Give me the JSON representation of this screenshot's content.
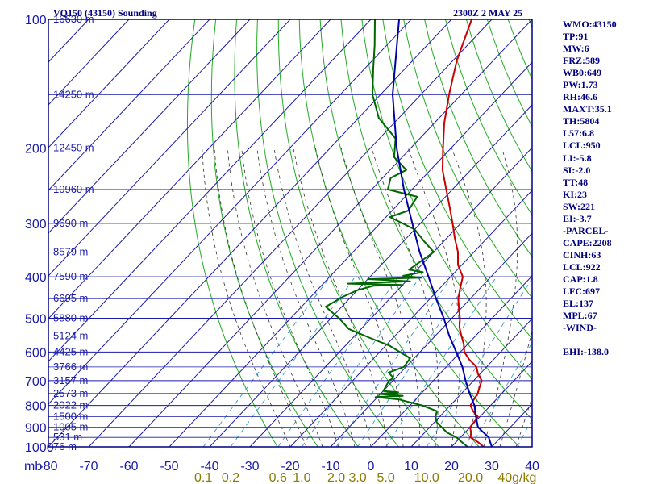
{
  "header": {
    "station_title": "VQ150 (43150) Sounding",
    "time_title": "2300Z  2 MAY 25"
  },
  "indices": [
    "WMO:43150",
    "TP:91",
    "MW:6",
    "FRZ:589",
    "WB0:649",
    "PW:1.73",
    "RH:46.6",
    "MAXT:35.1",
    "TH:5804",
    "L57:6.8",
    "LCL:950",
    "LI:-5.8",
    "SI:-2.0",
    "TT:48",
    "KI:23",
    "SW:221",
    "EI:-3.7",
    "-PARCEL-",
    "CAPE:2208",
    "CINH:63",
    "LCL:922",
    "CAP:1.8",
    "LFC:697",
    "EL:137",
    "MPL:67",
    "-WIND-",
    "",
    "EHI:-138.0"
  ],
  "colors": {
    "background": "#ffffff",
    "frame": "#000080",
    "isobar": "#1a1aa8",
    "isotherm": "#1a1aa8",
    "dry_adiabat": "#22aa22",
    "moist_adiabat": "#333333",
    "mixing_ratio": "#3399cc",
    "temperature": "#cc0000",
    "dewpoint": "#006600",
    "parcel": "#0000aa",
    "axis_text": "#1a1aa8",
    "height_text": "#1a1aa8",
    "mixing_text": "#8a7a00"
  },
  "chart_data": {
    "type": "line",
    "title": "VQ150 (43150) Sounding",
    "xlabel": "",
    "ylabel": "mb",
    "x_axis": "temperature (C)",
    "y_axis": "pressure (mb), log scale",
    "xlim": [
      -80,
      40
    ],
    "ylim": [
      1000,
      100
    ],
    "x_ticks": [
      -80,
      -70,
      -60,
      -50,
      -40,
      -30,
      -20,
      -10,
      0,
      10,
      20,
      30,
      40
    ],
    "y_ticks": [
      100,
      200,
      300,
      400,
      500,
      600,
      700,
      800,
      900,
      1000
    ],
    "y_label_unit": "mb",
    "isotherm_skew": "skewed",
    "height_labels": [
      {
        "p": 100,
        "text": "16630 m"
      },
      {
        "p": 150,
        "text": "14250 m"
      },
      {
        "p": 200,
        "text": "12450 m"
      },
      {
        "p": 250,
        "text": "10960 m"
      },
      {
        "p": 300,
        "text": "9690 m"
      },
      {
        "p": 350,
        "text": "8579 m"
      },
      {
        "p": 400,
        "text": "7590 m"
      },
      {
        "p": 450,
        "text": "6695 m"
      },
      {
        "p": 500,
        "text": "5880 m"
      },
      {
        "p": 550,
        "text": "5124 m"
      },
      {
        "p": 600,
        "text": "4425 m"
      },
      {
        "p": 650,
        "text": "3766 m"
      },
      {
        "p": 700,
        "text": "3157 m"
      },
      {
        "p": 750,
        "text": "2573 m"
      },
      {
        "p": 800,
        "text": "2022 m"
      },
      {
        "p": 850,
        "text": "1500 m"
      },
      {
        "p": 900,
        "text": "1005 m"
      },
      {
        "p": 950,
        "text": "531 m"
      },
      {
        "p": 1000,
        "text": "76 m"
      }
    ],
    "mixing_ratio_labels": [
      "0.1",
      "0.2",
      "0.6",
      "1.0",
      "2.0",
      "3.0",
      "5.0",
      "10.0",
      "20.0",
      "40g/kg"
    ],
    "series": [
      {
        "name": "temperature",
        "points": [
          [
            1000,
            28
          ],
          [
            975,
            25.5
          ],
          [
            950,
            22.5
          ],
          [
            925,
            21.5
          ],
          [
            900,
            20
          ],
          [
            875,
            19.8
          ],
          [
            850,
            19.5
          ],
          [
            825,
            17
          ],
          [
            800,
            15
          ],
          [
            775,
            14.5
          ],
          [
            750,
            14
          ],
          [
            725,
            13
          ],
          [
            700,
            12
          ],
          [
            675,
            9.5
          ],
          [
            650,
            7.5
          ],
          [
            625,
            4
          ],
          [
            600,
            1
          ],
          [
            575,
            -1
          ],
          [
            550,
            -3.5
          ],
          [
            525,
            -6
          ],
          [
            500,
            -8
          ],
          [
            475,
            -10.5
          ],
          [
            450,
            -13
          ],
          [
            425,
            -15
          ],
          [
            400,
            -17
          ],
          [
            375,
            -21
          ],
          [
            350,
            -24
          ],
          [
            325,
            -28
          ],
          [
            300,
            -32
          ],
          [
            275,
            -36.5
          ],
          [
            250,
            -41.5
          ],
          [
            225,
            -47
          ],
          [
            200,
            -52
          ],
          [
            175,
            -57.5
          ],
          [
            150,
            -63
          ],
          [
            125,
            -69
          ],
          [
            100,
            -75
          ]
        ]
      },
      {
        "name": "dewpoint",
        "points": [
          [
            1000,
            24
          ],
          [
            975,
            21.5
          ],
          [
            950,
            19
          ],
          [
            925,
            15.5
          ],
          [
            900,
            13
          ],
          [
            875,
            10.5
          ],
          [
            850,
            9
          ],
          [
            825,
            8
          ],
          [
            800,
            3
          ],
          [
            775,
            -4
          ],
          [
            765,
            -10.5
          ],
          [
            760,
            -4
          ],
          [
            752,
            -10.5
          ],
          [
            745,
            -6
          ],
          [
            740,
            -10
          ],
          [
            700,
            -11
          ],
          [
            690,
            -10.5
          ],
          [
            670,
            -13
          ],
          [
            650,
            -10.5
          ],
          [
            620,
            -11
          ],
          [
            600,
            -15
          ],
          [
            580,
            -19
          ],
          [
            555,
            -26
          ],
          [
            530,
            -33
          ],
          [
            500,
            -38
          ],
          [
            470,
            -44
          ],
          [
            445,
            -42
          ],
          [
            430,
            -40
          ],
          [
            420,
            -37
          ],
          [
            418,
            -30
          ],
          [
            415,
            -44
          ],
          [
            410,
            -29
          ],
          [
            405,
            -40
          ],
          [
            402,
            -27
          ],
          [
            398,
            -32
          ],
          [
            390,
            -28
          ],
          [
            385,
            -32
          ],
          [
            350,
            -30
          ],
          [
            330,
            -35
          ],
          [
            310,
            -40
          ],
          [
            290,
            -49
          ],
          [
            280,
            -46
          ],
          [
            260,
            -47
          ],
          [
            250,
            -56
          ],
          [
            235,
            -58
          ],
          [
            225,
            -56
          ],
          [
            210,
            -62
          ],
          [
            190,
            -66
          ],
          [
            170,
            -75
          ],
          [
            150,
            -82
          ],
          [
            130,
            -88
          ],
          [
            115,
            -93
          ],
          [
            100,
            -99
          ]
        ]
      },
      {
        "name": "parcel",
        "points": [
          [
            1000,
            30
          ],
          [
            950,
            27
          ],
          [
            900,
            22
          ],
          [
            850,
            19
          ],
          [
            800,
            16
          ],
          [
            750,
            12
          ],
          [
            700,
            8
          ],
          [
            650,
            4
          ],
          [
            600,
            -1
          ],
          [
            550,
            -6.5
          ],
          [
            500,
            -12
          ],
          [
            450,
            -18.5
          ],
          [
            400,
            -25.5
          ],
          [
            350,
            -33.5
          ],
          [
            300,
            -42
          ],
          [
            250,
            -52
          ],
          [
            200,
            -63.5
          ],
          [
            150,
            -77
          ],
          [
            100,
            -93
          ]
        ]
      }
    ]
  }
}
